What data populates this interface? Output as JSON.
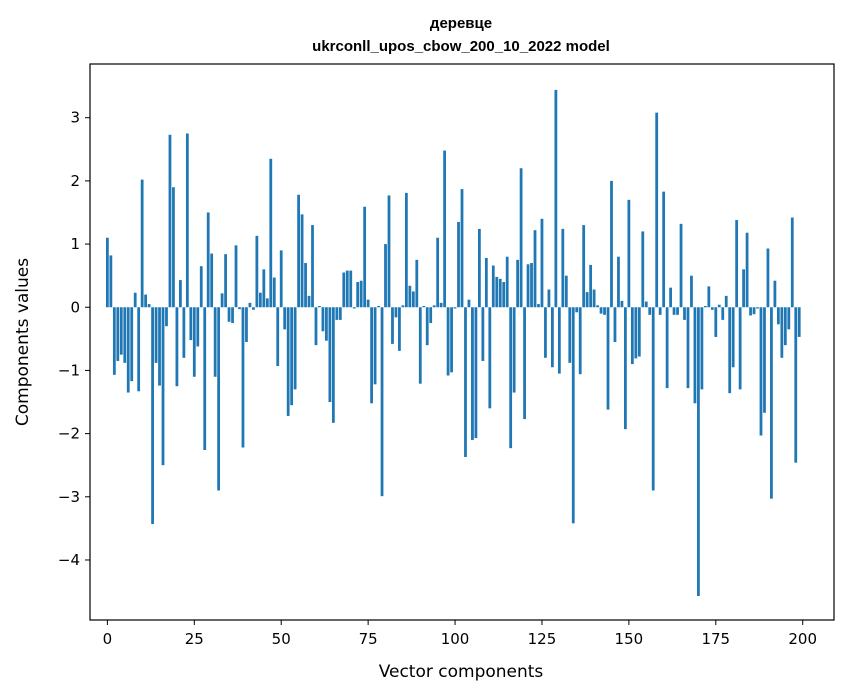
{
  "chart_data": {
    "type": "bar",
    "title": "деревце",
    "subtitle": "ukrconll_upos_cbow_200_10_2022 model",
    "xlabel": "Vector components",
    "ylabel": "Components values",
    "xlim": [
      -5,
      209
    ],
    "ylim": [
      -4.95,
      3.85
    ],
    "xticks": [
      0,
      25,
      50,
      75,
      100,
      125,
      150,
      175,
      200
    ],
    "yticks": [
      -4,
      -3,
      -2,
      -1,
      0,
      1,
      2,
      3
    ],
    "ytick_labels": [
      "−4",
      "−3",
      "−2",
      "−1",
      "0",
      "1",
      "2",
      "3"
    ],
    "bar_color": "#1f77b4",
    "grid": false,
    "x": [
      0,
      1,
      2,
      3,
      4,
      5,
      6,
      7,
      8,
      9,
      10,
      11,
      12,
      13,
      14,
      15,
      16,
      17,
      18,
      19,
      20,
      21,
      22,
      23,
      24,
      25,
      26,
      27,
      28,
      29,
      30,
      31,
      32,
      33,
      34,
      35,
      36,
      37,
      38,
      39,
      40,
      41,
      42,
      43,
      44,
      45,
      46,
      47,
      48,
      49,
      50,
      51,
      52,
      53,
      54,
      55,
      56,
      57,
      58,
      59,
      60,
      61,
      62,
      63,
      64,
      65,
      66,
      67,
      68,
      69,
      70,
      71,
      72,
      73,
      74,
      75,
      76,
      77,
      78,
      79,
      80,
      81,
      82,
      83,
      84,
      85,
      86,
      87,
      88,
      89,
      90,
      91,
      92,
      93,
      94,
      95,
      96,
      97,
      98,
      99,
      100,
      101,
      102,
      103,
      104,
      105,
      106,
      107,
      108,
      109,
      110,
      111,
      112,
      113,
      114,
      115,
      116,
      117,
      118,
      119,
      120,
      121,
      122,
      123,
      124,
      125,
      126,
      127,
      128,
      129,
      130,
      131,
      132,
      133,
      134,
      135,
      136,
      137,
      138,
      139,
      140,
      141,
      142,
      143,
      144,
      145,
      146,
      147,
      148,
      149,
      150,
      151,
      152,
      153,
      154,
      155,
      156,
      157,
      158,
      159,
      160,
      161,
      162,
      163,
      164,
      165,
      166,
      167,
      168,
      169,
      170,
      171,
      172,
      173,
      174,
      175,
      176,
      177,
      178,
      179,
      180,
      181,
      182,
      183,
      184,
      185,
      186,
      187,
      188,
      189,
      190,
      191,
      192,
      193,
      194,
      195,
      196,
      197,
      198,
      199
    ],
    "values": [
      1.1,
      0.82,
      -1.07,
      -0.85,
      -0.75,
      -0.88,
      -1.35,
      -1.17,
      0.23,
      -1.33,
      2.02,
      0.2,
      0.05,
      -3.43,
      -0.88,
      -1.24,
      -2.5,
      -0.3,
      2.73,
      1.9,
      -1.25,
      0.43,
      -0.8,
      2.75,
      -0.52,
      -1.1,
      -0.62,
      0.65,
      -2.26,
      1.5,
      0.85,
      -1.1,
      -2.9,
      0.22,
      0.84,
      -0.23,
      -0.25,
      0.98,
      -0.03,
      -2.22,
      -0.55,
      0.07,
      -0.04,
      1.13,
      0.23,
      0.6,
      0.14,
      2.35,
      0.47,
      -0.93,
      0.9,
      -0.35,
      -1.72,
      -1.55,
      -1.3,
      1.78,
      1.47,
      0.7,
      0.18,
      1.3,
      -0.6,
      0.02,
      -0.38,
      -0.53,
      -1.5,
      -1.83,
      -0.2,
      -0.2,
      0.55,
      0.58,
      0.58,
      -0.02,
      0.4,
      0.42,
      1.59,
      0.12,
      -1.52,
      -1.22,
      0.02,
      -2.99,
      1.0,
      1.77,
      -0.58,
      -0.16,
      -0.69,
      0.03,
      1.81,
      0.34,
      0.25,
      0.75,
      -1.21,
      0.02,
      -0.6,
      -0.25,
      0.03,
      1.1,
      0.07,
      2.48,
      -1.08,
      -1.03,
      -0.02,
      1.35,
      1.87,
      -2.37,
      0.12,
      -2.1,
      -2.07,
      1.24,
      -0.85,
      0.78,
      -1.6,
      0.66,
      0.48,
      0.45,
      0.4,
      0.8,
      -2.23,
      -1.35,
      0.75,
      2.2,
      -1.77,
      0.68,
      0.7,
      1.22,
      0.05,
      1.4,
      -0.8,
      0.28,
      -0.95,
      3.44,
      -1.05,
      1.24,
      0.5,
      -0.88,
      -3.42,
      -0.08,
      -1.06,
      1.3,
      0.24,
      0.67,
      0.28,
      0.03,
      -0.1,
      -0.12,
      -1.62,
      2.0,
      -0.55,
      0.8,
      0.1,
      -1.93,
      1.7,
      -0.9,
      -0.81,
      -0.78,
      1.2,
      0.09,
      -0.12,
      -2.9,
      3.08,
      -0.12,
      1.83,
      -1.28,
      0.31,
      -0.12,
      -0.12,
      1.32,
      -0.2,
      -1.28,
      0.5,
      -1.52,
      -4.57,
      -1.3,
      0.02,
      0.33,
      -0.04,
      -0.47,
      0.04,
      -0.2,
      0.18,
      -1.36,
      -0.95,
      1.38,
      -1.3,
      0.6,
      1.18,
      -0.13,
      -0.11,
      -0.02,
      -2.03,
      -1.67,
      0.93,
      -3.03,
      0.42,
      -0.27,
      -0.8,
      -0.6,
      -0.35,
      1.42,
      -2.46,
      -0.47
    ]
  }
}
